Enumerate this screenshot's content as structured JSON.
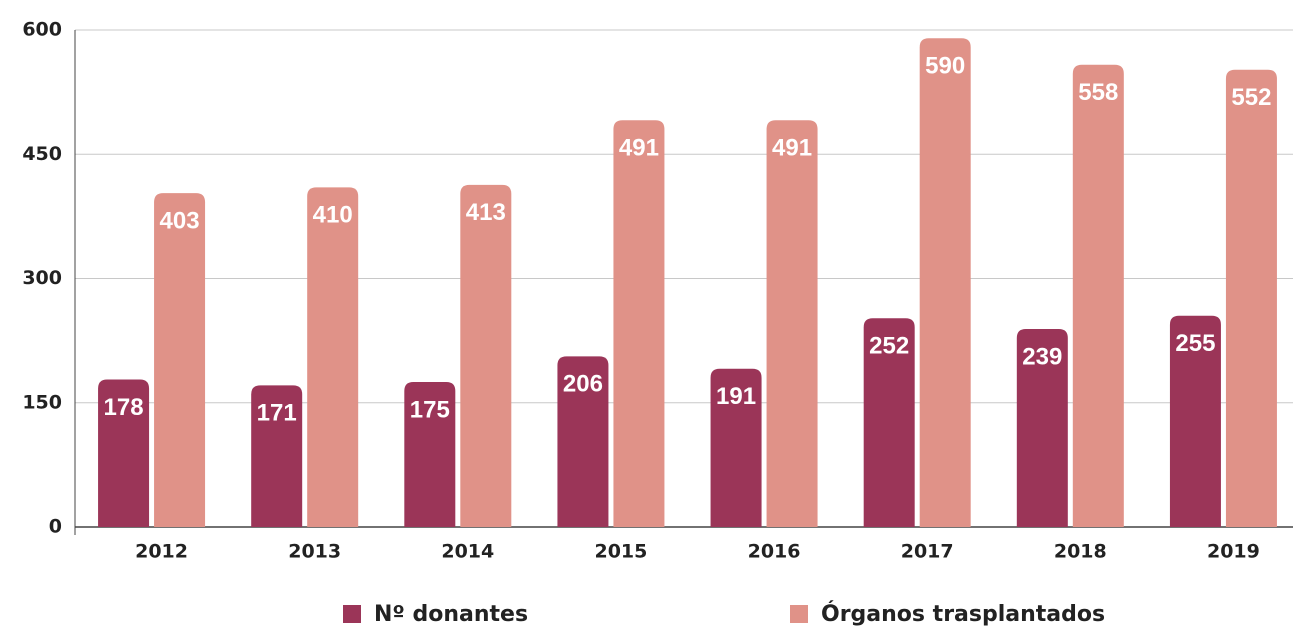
{
  "chart_data": {
    "type": "bar",
    "categories": [
      "2012",
      "2013",
      "2014",
      "2015",
      "2016",
      "2017",
      "2018",
      "2019"
    ],
    "series": [
      {
        "name": "Nº donantes",
        "color": "#9b3558",
        "values": [
          178,
          171,
          175,
          206,
          191,
          252,
          239,
          255
        ]
      },
      {
        "name": "Órganos trasplantados",
        "color": "#e09288",
        "values": [
          403,
          410,
          413,
          491,
          491,
          590,
          558,
          552
        ]
      }
    ],
    "ylim": [
      0,
      600
    ],
    "yticks": [
      0,
      150,
      300,
      450,
      600
    ],
    "grid": true,
    "legend": "bottom"
  }
}
